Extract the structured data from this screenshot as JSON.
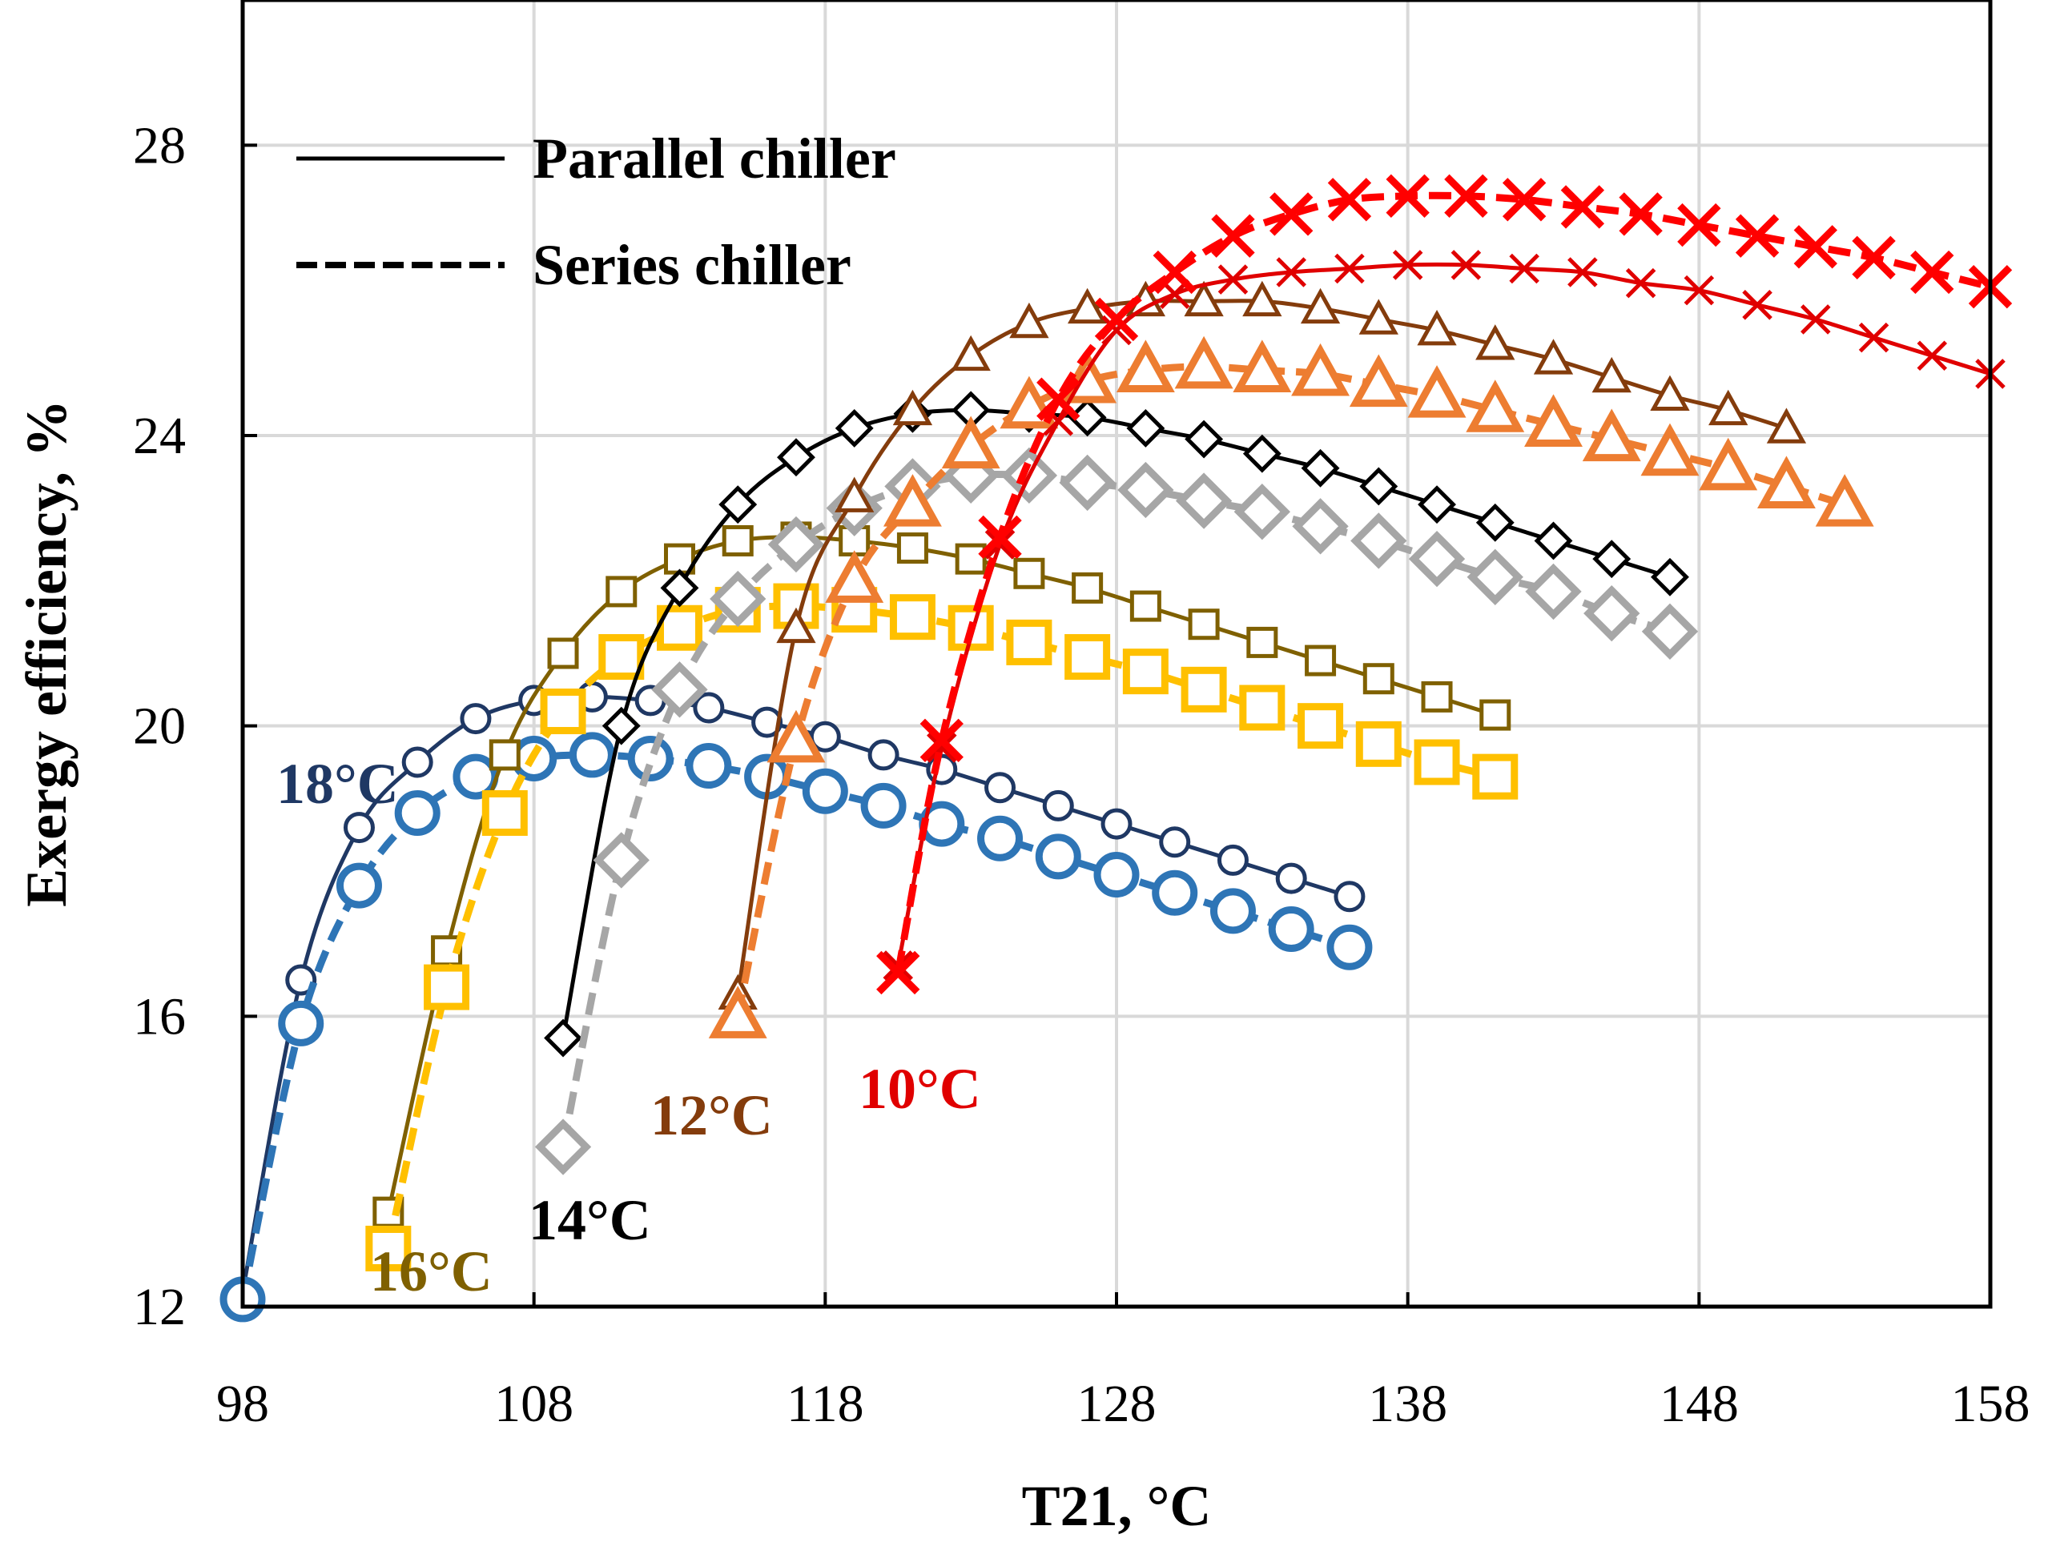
{
  "chart_data": {
    "type": "line",
    "xlabel": "T21, °C",
    "ylabel": "Exergy efficiency, %",
    "xlim": [
      98,
      158
    ],
    "ylim": [
      12,
      30
    ],
    "x_ticks": [
      98,
      108,
      118,
      128,
      138,
      148,
      158
    ],
    "y_ticks": [
      12,
      16,
      20,
      24,
      28
    ],
    "x_tick_labels": [
      "98",
      "108",
      "118",
      "128",
      "138",
      "148",
      "158"
    ],
    "y_tick_labels": [
      "12",
      "16",
      "20",
      "24",
      "28"
    ],
    "grid": true,
    "legend": [
      {
        "label": "Parallel chiller",
        "style": "solid"
      },
      {
        "label": "Series chiller",
        "style": "dashed"
      }
    ],
    "annotations": [
      {
        "text": "18°C",
        "color": "#1F3864"
      },
      {
        "text": "16°C",
        "color": "#7F6000"
      },
      {
        "text": "14°C",
        "color": "#000000"
      },
      {
        "text": "12°C",
        "color": "#843C0C"
      },
      {
        "text": "10°C",
        "color": "#E00000"
      }
    ],
    "series": [
      {
        "name": "18°C Parallel chiller",
        "config": "parallel",
        "style": "solid",
        "marker": "circle",
        "color": "#1F3864",
        "x": [
          98,
          100,
          102,
          104,
          106,
          108,
          110,
          112,
          114,
          116,
          118,
          120,
          122,
          124,
          126,
          128,
          130,
          132,
          134,
          136
        ],
        "y": [
          12.2,
          16.5,
          18.6,
          19.5,
          20.1,
          20.35,
          20.4,
          20.35,
          20.25,
          20.05,
          19.85,
          19.6,
          19.4,
          19.15,
          18.9,
          18.65,
          18.4,
          18.15,
          17.9,
          17.65
        ]
      },
      {
        "name": "18°C Series chiller",
        "config": "series",
        "style": "dashed",
        "marker": "circle",
        "color": "#2E75B6",
        "x": [
          98,
          100,
          102,
          104,
          106,
          108,
          110,
          112,
          114,
          116,
          118,
          120,
          122,
          124,
          126,
          128,
          130,
          132,
          134,
          136
        ],
        "y": [
          12.1,
          15.9,
          17.8,
          18.8,
          19.3,
          19.55,
          19.6,
          19.55,
          19.45,
          19.3,
          19.1,
          18.9,
          18.65,
          18.45,
          18.2,
          17.95,
          17.7,
          17.45,
          17.2,
          16.95
        ]
      },
      {
        "name": "16°C Parallel chiller",
        "config": "parallel",
        "style": "solid",
        "marker": "square",
        "color": "#7F6000",
        "x": [
          103,
          105,
          107,
          109,
          111,
          113,
          115,
          117,
          119,
          121,
          123,
          125,
          127,
          129,
          131,
          133,
          135,
          137,
          139,
          141
        ],
        "y": [
          13.3,
          16.9,
          19.6,
          21.0,
          21.85,
          22.3,
          22.55,
          22.6,
          22.55,
          22.45,
          22.3,
          22.1,
          21.9,
          21.65,
          21.4,
          21.15,
          20.9,
          20.65,
          20.4,
          20.15
        ]
      },
      {
        "name": "16°C Series chiller",
        "config": "series",
        "style": "dashed",
        "marker": "square",
        "color": "#FFC000",
        "x": [
          103,
          105,
          107,
          109,
          111,
          113,
          115,
          117,
          119,
          121,
          123,
          125,
          127,
          129,
          131,
          133,
          135,
          137,
          139,
          141
        ],
        "y": [
          12.8,
          16.4,
          18.8,
          20.2,
          20.95,
          21.35,
          21.6,
          21.65,
          21.6,
          21.5,
          21.35,
          21.15,
          20.95,
          20.75,
          20.5,
          20.25,
          20.0,
          19.75,
          19.5,
          19.3
        ]
      },
      {
        "name": "14°C Parallel chiller",
        "config": "parallel",
        "style": "solid",
        "marker": "diamond",
        "color": "#000000",
        "x": [
          109,
          111,
          113,
          115,
          117,
          119,
          121,
          123,
          125,
          127,
          129,
          131,
          133,
          135,
          137,
          139,
          141,
          143,
          145,
          147
        ],
        "y": [
          15.7,
          20.0,
          21.9,
          23.05,
          23.7,
          24.1,
          24.3,
          24.35,
          24.3,
          24.25,
          24.1,
          23.95,
          23.75,
          23.55,
          23.3,
          23.05,
          22.8,
          22.55,
          22.3,
          22.05
        ]
      },
      {
        "name": "14°C Series chiller",
        "config": "series",
        "style": "dashed",
        "marker": "diamond",
        "color": "#A6A6A6",
        "x": [
          109,
          111,
          113,
          115,
          117,
          119,
          121,
          123,
          125,
          127,
          129,
          131,
          133,
          135,
          137,
          139,
          141,
          143,
          145,
          147
        ],
        "y": [
          14.2,
          18.15,
          20.5,
          21.75,
          22.5,
          23.0,
          23.3,
          23.45,
          23.45,
          23.35,
          23.25,
          23.1,
          22.95,
          22.75,
          22.55,
          22.3,
          22.05,
          21.85,
          21.55,
          21.3
        ]
      },
      {
        "name": "12°C Parallel chiller",
        "config": "parallel",
        "style": "solid",
        "marker": "triangle",
        "color": "#843C0C",
        "x": [
          115,
          117,
          119,
          121,
          123,
          125,
          127,
          129,
          131,
          133,
          135,
          137,
          139,
          141,
          143,
          145,
          147,
          149,
          151
        ],
        "y": [
          16.3,
          21.35,
          23.15,
          24.35,
          25.1,
          25.55,
          25.75,
          25.85,
          25.85,
          25.85,
          25.75,
          25.6,
          25.45,
          25.25,
          25.05,
          24.8,
          24.55,
          24.35,
          24.1
        ]
      },
      {
        "name": "12°C Series chiller",
        "config": "series",
        "style": "dashed",
        "marker": "triangle",
        "color": "#ED7D31",
        "x": [
          115,
          117,
          119,
          121,
          123,
          125,
          127,
          129,
          131,
          133,
          135,
          137,
          139,
          141,
          143,
          145,
          147,
          149,
          151,
          153
        ],
        "y": [
          16.0,
          19.8,
          22.0,
          23.05,
          23.85,
          24.4,
          24.75,
          24.9,
          24.95,
          24.9,
          24.85,
          24.7,
          24.55,
          24.35,
          24.15,
          23.95,
          23.75,
          23.55,
          23.3,
          23.05
        ]
      },
      {
        "name": "10°C Parallel chiller",
        "config": "parallel",
        "style": "solid",
        "marker": "x",
        "color": "#E00000",
        "x": [
          120.5,
          122,
          124,
          126,
          128,
          130,
          132,
          134,
          136,
          138,
          140,
          142,
          144,
          146,
          148,
          150,
          152,
          154,
          156,
          158
        ],
        "y": [
          16.7,
          19.7,
          22.5,
          24.2,
          25.45,
          25.95,
          26.15,
          26.25,
          26.3,
          26.35,
          26.35,
          26.3,
          26.25,
          26.1,
          26.0,
          25.8,
          25.6,
          25.35,
          25.1,
          24.85
        ]
      },
      {
        "name": "10°C Series chiller",
        "config": "series",
        "style": "dashed",
        "marker": "x",
        "color": "#FF0000",
        "x": [
          120.5,
          122,
          124,
          126,
          128,
          130,
          132,
          134,
          136,
          138,
          140,
          142,
          144,
          146,
          148,
          150,
          152,
          154,
          156,
          158
        ],
        "y": [
          16.6,
          19.8,
          22.6,
          24.5,
          25.6,
          26.25,
          26.75,
          27.05,
          27.25,
          27.3,
          27.3,
          27.25,
          27.15,
          27.05,
          26.9,
          26.75,
          26.6,
          26.45,
          26.25,
          26.05
        ]
      }
    ]
  }
}
